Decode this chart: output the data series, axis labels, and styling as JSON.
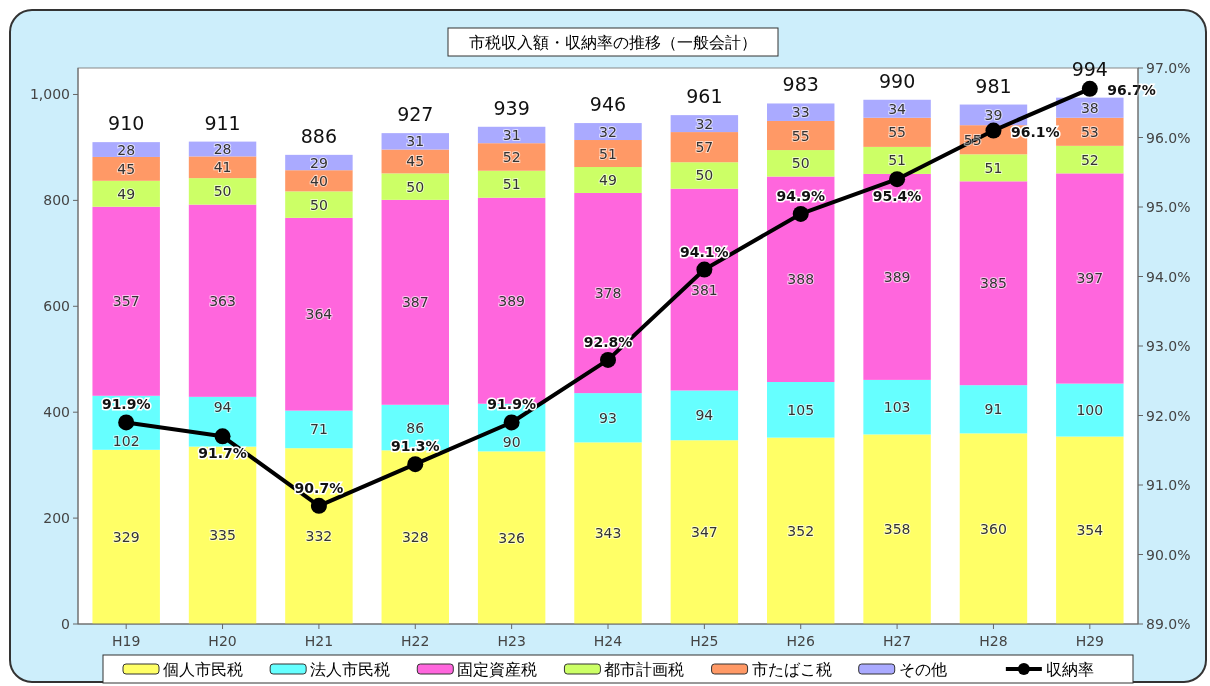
{
  "chart_data": {
    "type": "bar",
    "title": "市税収入額・収納率の推移（一般会計）",
    "stacked": true,
    "data_labels": true,
    "legend": "bottom",
    "grid": false,
    "categories": [
      "H19",
      "H20",
      "H21",
      "H22",
      "H23",
      "H24",
      "H25",
      "H26",
      "H27",
      "H28",
      "H29"
    ],
    "ylim": [
      0,
      1050
    ],
    "yticks": [
      0,
      200,
      400,
      600,
      800,
      {
        "value": 1000,
        "label": "1,000"
      }
    ],
    "y2lim": [
      89,
      97
    ],
    "y2ticks": [
      {
        "value": 89,
        "label": "89.0%"
      },
      {
        "value": 90,
        "label": "90.0%"
      },
      {
        "value": 91,
        "label": "91.0%"
      },
      {
        "value": 92,
        "label": "92.0%"
      },
      {
        "value": 93,
        "label": "93.0%"
      },
      {
        "value": 94,
        "label": "94.0%"
      },
      {
        "value": 95,
        "label": "95.0%"
      },
      {
        "value": 96,
        "label": "96.0%"
      },
      {
        "value": 97,
        "label": "97.0%"
      }
    ],
    "series": [
      {
        "name": "個人市民税",
        "color": "#ffff66",
        "values": [
          329,
          335,
          332,
          328,
          326,
          343,
          347,
          352,
          358,
          360,
          354
        ]
      },
      {
        "name": "法人市民税",
        "color": "#66ffff",
        "values": [
          102,
          94,
          71,
          86,
          90,
          93,
          94,
          105,
          103,
          91,
          100
        ]
      },
      {
        "name": "固定資産税",
        "color": "#ff66dd",
        "values": [
          357,
          363,
          364,
          387,
          389,
          378,
          381,
          388,
          389,
          385,
          397
        ]
      },
      {
        "name": "都市計画税",
        "color": "#ccff66",
        "values": [
          49,
          50,
          50,
          50,
          51,
          49,
          50,
          50,
          51,
          51,
          52
        ]
      },
      {
        "name": "市たばこ税",
        "color": "#ff9966",
        "values": [
          45,
          41,
          40,
          45,
          52,
          51,
          57,
          55,
          55,
          55,
          53
        ]
      },
      {
        "name": "その他",
        "color": "#aaaaff",
        "values": [
          28,
          28,
          29,
          31,
          31,
          32,
          32,
          33,
          34,
          39,
          38
        ]
      },
      {
        "name": "収納率",
        "type": "line",
        "axis": "y2",
        "color": "#000000",
        "marker": "circle",
        "values": [
          91.9,
          91.7,
          90.7,
          91.3,
          91.9,
          92.8,
          94.1,
          94.9,
          95.4,
          96.1,
          96.7
        ],
        "value_labels": [
          "91.9%",
          "91.7%",
          "90.7%",
          "91.3%",
          "91.9%",
          "92.8%",
          "94.1%",
          "94.9%",
          "95.4%",
          "96.1%",
          "96.7%"
        ]
      }
    ],
    "totals": [
      "910",
      "911",
      "886",
      "927",
      "939",
      "946",
      "961",
      "983",
      "990",
      "981",
      "994"
    ]
  }
}
